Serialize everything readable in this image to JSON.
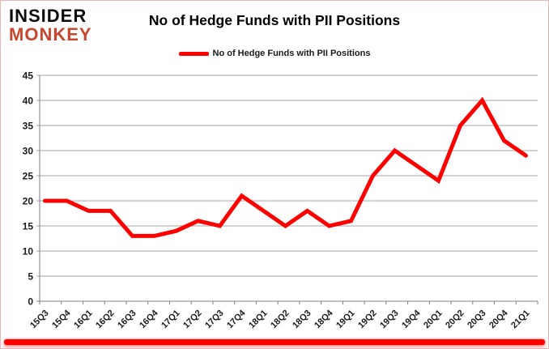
{
  "branding": {
    "line1": "INSIDER",
    "line2": "MONKEY",
    "line1_color": "#0d0d0d",
    "line2_color": "#c7462e"
  },
  "title": "No of Hedge Funds with PII Positions",
  "legend": {
    "label": "No of Hedge Funds with PII Positions",
    "marker_color": "#fe0000"
  },
  "colors": {
    "line": "#fe0000",
    "gridline": "#a6a6a6",
    "axis": "#7f7f7f",
    "label": "#1a1a1a",
    "bottom_bar": "#fe0000",
    "border": "#eab6b6"
  },
  "chart_data": {
    "type": "line",
    "title": "No of Hedge Funds with PII Positions",
    "categories": [
      "15Q3",
      "15Q4",
      "16Q1",
      "16Q2",
      "16Q3",
      "16Q4",
      "17Q1",
      "17Q2",
      "17Q3",
      "17Q4",
      "18Q1",
      "18Q2",
      "18Q3",
      "18Q4",
      "19Q1",
      "19Q2",
      "19Q3",
      "19Q4",
      "20Q1",
      "20Q2",
      "20Q3",
      "20Q4",
      "21Q1"
    ],
    "series": [
      {
        "name": "No of Hedge Funds with PII Positions",
        "color": "#fe0000",
        "values": [
          20,
          20,
          18,
          18,
          13,
          13,
          14,
          16,
          15,
          21,
          18,
          15,
          18,
          15,
          16,
          25,
          30,
          27,
          24,
          35,
          40,
          32,
          29
        ]
      }
    ],
    "xlabel": "",
    "ylabel": "",
    "ylim": [
      0,
      45
    ],
    "ytick_step": 5,
    "grid": true,
    "legend_position": "top",
    "x_label_rotation": -45
  }
}
